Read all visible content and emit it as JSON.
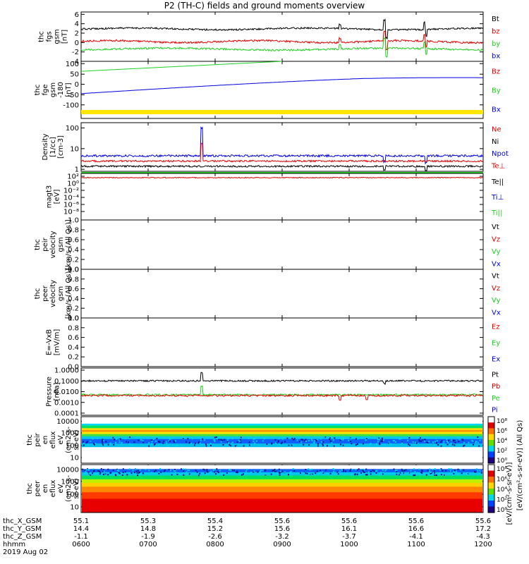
{
  "title": "P2 (TH-C) fields and ground moments overview",
  "date_label": "2019 Aug 02",
  "colors": {
    "black": "#000000",
    "red": "#e00000",
    "green": "#20d020",
    "blue": "#0000e0",
    "yellow": "#ffe600"
  },
  "chart_data": [
    {
      "panel": "fgs",
      "type": "line",
      "ylabel": [
        "thc",
        "fgs",
        "gsm",
        "[nT]"
      ],
      "yticks": [
        "6",
        "4",
        "2",
        "0",
        "-2",
        "-4"
      ],
      "ylim": [
        -4,
        6.5
      ],
      "series": [
        {
          "name": "Bt",
          "color": "black",
          "level": 2.9
        },
        {
          "name": "bz",
          "color": "red",
          "level": 0.2
        },
        {
          "name": "by",
          "color": "green",
          "level": -1.4
        },
        {
          "name": "bx",
          "color": "blue"
        }
      ]
    },
    {
      "panel": "fge",
      "type": "line",
      "ylabel": [
        "thc",
        "fge",
        "gsm",
        "-180",
        "[nT]"
      ],
      "yticks": [
        "100",
        "50",
        "0",
        "-50",
        "-100"
      ],
      "ylim": [
        -130,
        100
      ],
      "series": [
        {
          "name": "Bz",
          "color": "red"
        },
        {
          "name": "By",
          "color": "green",
          "x": [
            "0600",
            "0900"
          ],
          "y": [
            60,
            100
          ]
        },
        {
          "name": "Bx",
          "color": "blue",
          "x": [
            "0600",
            "0840",
            "1000",
            "1200"
          ],
          "y": [
            -30,
            32,
            45,
            35
          ]
        }
      ]
    },
    {
      "panel": "density",
      "type": "line",
      "ylabel": [
        "Density",
        "[1/cc]",
        "[cm-3]"
      ],
      "yticks": [
        "100",
        "10",
        "1"
      ],
      "ylim": [
        0.8,
        180
      ],
      "yscale": "log",
      "series": [
        {
          "name": "Ne",
          "color": "red",
          "level": 2.5
        },
        {
          "name": "Ni",
          "color": "black",
          "level": 1.4
        },
        {
          "name": "Npot",
          "color": "blue",
          "level": 4.5
        },
        {
          "name": "Te⊥",
          "color": "red"
        }
      ]
    },
    {
      "panel": "magt3",
      "type": "line",
      "ylabel": [
        "magt3",
        "[eV]"
      ],
      "yticks": [
        "10²",
        "10⁰",
        "10⁻²",
        "10⁻⁴",
        "10⁻⁶",
        "10⁻⁸"
      ],
      "ylim_log10": [
        -9,
        3
      ],
      "series": [
        {
          "name": "Te||",
          "color": "black"
        },
        {
          "name": "Ti⊥",
          "color": "blue"
        },
        {
          "name": "Ti||",
          "color": "green"
        }
      ]
    },
    {
      "panel": "peir_velocity",
      "type": "line",
      "ylabel": [
        "thc",
        "peir",
        "velocity",
        "gsm",
        "[km/s (All Qs)]"
      ],
      "yticks": [
        "1.0",
        "0.8",
        "0.6",
        "0.4",
        "0.2",
        "0.0"
      ],
      "ylim": [
        0,
        1
      ],
      "series": [
        {
          "name": "Vt",
          "color": "black"
        },
        {
          "name": "Vz",
          "color": "red"
        },
        {
          "name": "Vy",
          "color": "green"
        },
        {
          "name": "Vx",
          "color": "blue"
        }
      ]
    },
    {
      "panel": "peer_velocity",
      "type": "line",
      "ylabel": [
        "thc",
        "peer",
        "velocity",
        "gsm",
        "[km/s (All Qs)]"
      ],
      "yticks": [
        "1.0",
        "0.8",
        "0.6",
        "0.4",
        "0.2",
        "0.0"
      ],
      "ylim": [
        0,
        1
      ],
      "series": [
        {
          "name": "Vt",
          "color": "black"
        },
        {
          "name": "Vz",
          "color": "red"
        },
        {
          "name": "Vy",
          "color": "green"
        },
        {
          "name": "Vx",
          "color": "blue"
        }
      ]
    },
    {
      "panel": "efield",
      "type": "line",
      "ylabel": [
        "E=-VxB",
        "[mV/m]"
      ],
      "yticks": [
        "1.0",
        "0.8",
        "0.6",
        "0.4",
        "0.2",
        "0.0"
      ],
      "ylim": [
        0,
        1
      ],
      "series": [
        {
          "name": "Ez",
          "color": "red"
        },
        {
          "name": "Ey",
          "color": "green"
        },
        {
          "name": "Ex",
          "color": "blue"
        }
      ]
    },
    {
      "panel": "pressure",
      "type": "line",
      "ylabel": [
        "Pressure",
        "[nPa]"
      ],
      "yticks": [
        "1.0000",
        "0.1000",
        "0.0100",
        "0.0010",
        "0.0001"
      ],
      "ylim": [
        0.0001,
        1.5
      ],
      "yscale": "log",
      "series": [
        {
          "name": "Pt",
          "color": "black",
          "level": 0.11
        },
        {
          "name": "Pb",
          "color": "red",
          "level": 0.0055
        },
        {
          "name": "Pe",
          "color": "green",
          "level": 0.0065
        },
        {
          "name": "Pi",
          "color": "blue"
        }
      ]
    },
    {
      "panel": "peir_eflux",
      "type": "heatmap",
      "ylabel": [
        "thc",
        "peir",
        "en",
        "eflux",
        "eV",
        "(cm2-s-",
        "sr-eV)"
      ],
      "yticks": [
        "10000",
        "1000",
        "100",
        "10"
      ],
      "colorbar_ticks": [
        "10⁸",
        "10⁶",
        "10⁴",
        "10²",
        "10⁰"
      ],
      "colorbar_label": "[eV/(cm²-s-sr-eV)] (All Qs)"
    },
    {
      "panel": "peer_eflux",
      "type": "heatmap",
      "ylabel": [
        "thc",
        "peer",
        "en",
        "eflux",
        "eV",
        "(cm2-s-",
        "sr-eV)"
      ],
      "yticks": [
        "10000",
        "1000",
        "100",
        "10"
      ],
      "colorbar_ticks": [
        "10⁸",
        "10⁶",
        "10⁴",
        "10²",
        "10⁰"
      ],
      "colorbar_label": "[eV/(cm²-s-sr-eV)]"
    }
  ],
  "x_axis": {
    "rows": [
      {
        "label": "thc_X_GSM",
        "values": [
          "55.1",
          "55.3",
          "55.4",
          "55.6",
          "55.6",
          "55.6",
          "55.6"
        ]
      },
      {
        "label": "thc_Y_GSM",
        "values": [
          "14.4",
          "14.8",
          "15.2",
          "15.6",
          "16.1",
          "16.6",
          "17.2"
        ]
      },
      {
        "label": "thc_Z_GSM",
        "values": [
          "-1.1",
          "-1.9",
          "-2.6",
          "-3.2",
          "-3.7",
          "-4.1",
          "-4.3"
        ]
      },
      {
        "label": "hhmm",
        "values": [
          "0600",
          "0700",
          "0800",
          "0900",
          "1000",
          "1100",
          "1200"
        ]
      }
    ]
  }
}
